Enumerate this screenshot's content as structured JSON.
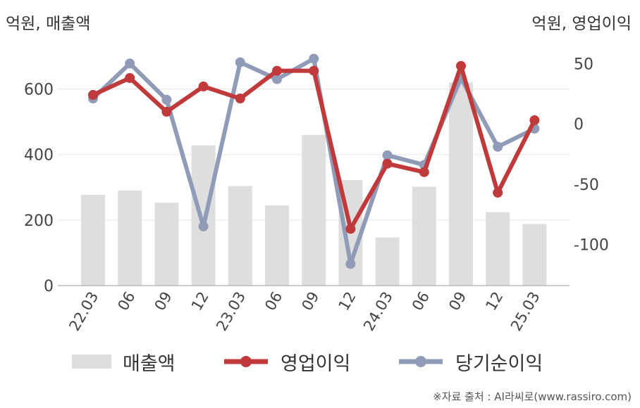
{
  "units": {
    "left": "억원, 매출액",
    "right": "억원, 영업이익"
  },
  "colors": {
    "sales": "#dedede",
    "op": "#c0393b",
    "net": "#8f9bb7",
    "axis": "#bbbbbb",
    "grid": "#e6e6e6"
  },
  "chart_data": {
    "type": "bar+line",
    "categories": [
      "22.03",
      "06",
      "09",
      "12",
      "23.03",
      "06",
      "09",
      "12",
      "24.03",
      "06",
      "09",
      "12",
      "25.03"
    ],
    "y_left": {
      "ticks": [
        0,
        200,
        400,
        600
      ],
      "range": [
        0,
        700
      ]
    },
    "y_right": {
      "ticks": [
        -100,
        -50,
        0,
        50
      ],
      "range": [
        -134,
        56
      ]
    },
    "series": [
      {
        "name": "매출액",
        "type": "bar",
        "axis": "left",
        "values": [
          277,
          290,
          253,
          428,
          304,
          245,
          460,
          322,
          147,
          302,
          620,
          224,
          188
        ]
      },
      {
        "name": "영업이익",
        "type": "line",
        "axis": "right",
        "values": [
          24,
          38,
          10,
          31,
          21,
          44,
          44,
          -87,
          -33,
          -40,
          48,
          -57,
          3
        ]
      },
      {
        "name": "당기순이익",
        "type": "line",
        "axis": "right",
        "values": [
          21,
          50,
          20,
          -85,
          51,
          37,
          54,
          -116,
          -26,
          -34,
          38,
          -19,
          -4
        ]
      }
    ]
  },
  "legend": {
    "sales": "매출액",
    "op": "영업이익",
    "net": "당기순이익"
  },
  "source": "※자료 출처 : AI라씨로(www.rassiro.com)"
}
